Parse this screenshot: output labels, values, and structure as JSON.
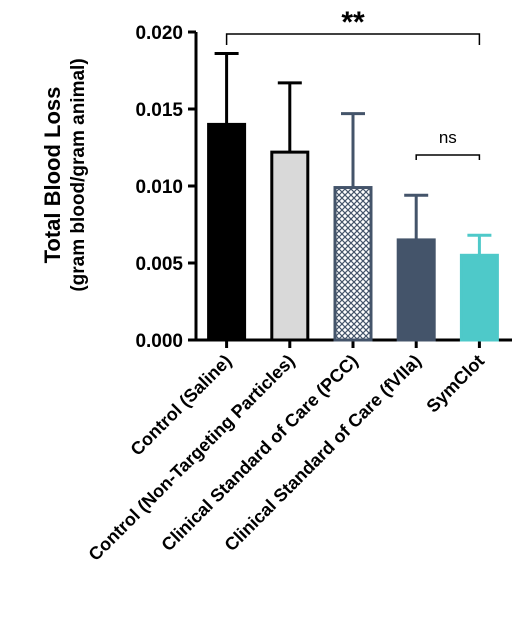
{
  "chart_data": {
    "type": "bar",
    "categories": [
      "Control (Saline)",
      "Control (Non-Targeting Particles)",
      "Clinical Standard of Care (PCC)",
      "Clinical Standard of Care (fVIIa)",
      "SymClot"
    ],
    "values": [
      0.014,
      0.0122,
      0.0099,
      0.0065,
      0.0055
    ],
    "error_upper": [
      0.0186,
      0.0167,
      0.0147,
      0.0094,
      0.0068
    ],
    "bar_styles": [
      {
        "fill": "#000000",
        "stroke": "#000000",
        "pattern": "solid"
      },
      {
        "fill": "#d9d9d9",
        "stroke": "#000000",
        "pattern": "solid"
      },
      {
        "fill": "#ffffff",
        "stroke": "#44546a",
        "pattern": "crosshatch"
      },
      {
        "fill": "#44546a",
        "stroke": "#44546a",
        "pattern": "solid"
      },
      {
        "fill": "#4ec9c9",
        "stroke": "#4ec9c9",
        "pattern": "solid"
      }
    ],
    "ylabel": "Total Blood Loss",
    "ylabel_sub": "(gram blood/gram animal)",
    "ylim": [
      0,
      0.02
    ],
    "yticks": [
      "0.000",
      "0.005",
      "0.010",
      "0.015",
      "0.020"
    ],
    "significance": [
      {
        "from": 0,
        "to": 4,
        "label": "**"
      },
      {
        "from": 3,
        "to": 4,
        "label": "ns"
      }
    ],
    "grid": false
  }
}
